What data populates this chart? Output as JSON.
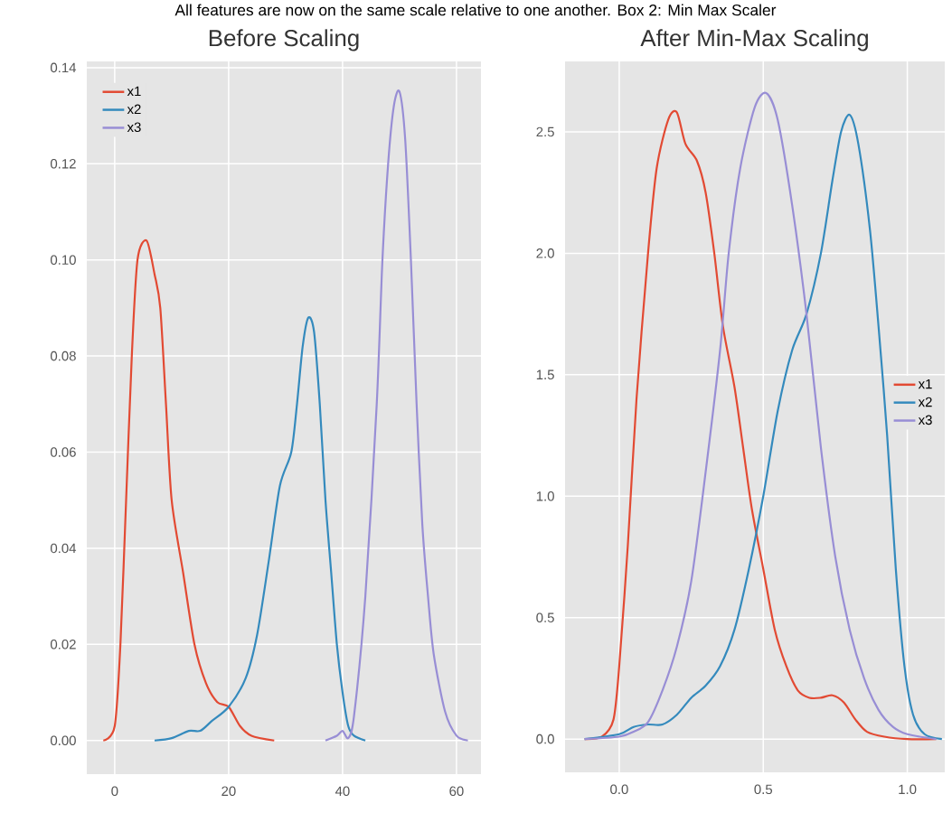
{
  "chart_data": [
    {
      "type": "line",
      "title": "Before Scaling",
      "annotations": [
        "All features are now on the same scale relative to one another. Box 2: Min Max Scaler"
      ],
      "xlim": [
        -4.9,
        64.3
      ],
      "ylim": [
        -0.007,
        0.1413
      ],
      "xticks": [
        0,
        20,
        40,
        60
      ],
      "yticks": [
        {
          "value": 0,
          "label": "0.00"
        },
        {
          "value": 0.02,
          "label": "0.02"
        },
        {
          "value": 0.04,
          "label": "0.04"
        },
        {
          "value": 0.06,
          "label": "0.06"
        },
        {
          "value": 0.08,
          "label": "0.08"
        },
        {
          "value": 0.1,
          "label": "0.10"
        },
        {
          "value": 0.12,
          "label": "0.12"
        },
        {
          "value": 0.14,
          "label": "0.14"
        }
      ],
      "grid": true,
      "legend": "top left",
      "series": [
        {
          "name": "x1",
          "color": "#e24a33",
          "x": [
            -2,
            0,
            1,
            2,
            3,
            4,
            5.6,
            7,
            8,
            9,
            10,
            12,
            14,
            16,
            18,
            20,
            22,
            24,
            28
          ],
          "values": [
            0,
            0.003,
            0.02,
            0.05,
            0.08,
            0.1,
            0.104,
            0.097,
            0.09,
            0.07,
            0.05,
            0.035,
            0.02,
            0.012,
            0.008,
            0.007,
            0.003,
            0.001,
            0
          ]
        },
        {
          "name": "x2",
          "color": "#348abd",
          "x": [
            7,
            10,
            13,
            15,
            17,
            20,
            23,
            25,
            27,
            29,
            31,
            32,
            33,
            34,
            35,
            36,
            37,
            38,
            39,
            40,
            41,
            42,
            44
          ],
          "values": [
            0,
            0.0005,
            0.002,
            0.002,
            0.004,
            0.007,
            0.013,
            0.022,
            0.037,
            0.053,
            0.06,
            0.07,
            0.082,
            0.088,
            0.085,
            0.07,
            0.05,
            0.035,
            0.02,
            0.01,
            0.003,
            0.001,
            0
          ]
        },
        {
          "name": "x3",
          "color": "#988ed5",
          "x": [
            37,
            39,
            40,
            41,
            42,
            44,
            46,
            47,
            48,
            49,
            50,
            51,
            52,
            53,
            54,
            55,
            56,
            58,
            60,
            62
          ],
          "values": [
            0,
            0.001,
            0.002,
            0.0005,
            0.005,
            0.03,
            0.07,
            0.1,
            0.12,
            0.132,
            0.135,
            0.125,
            0.1,
            0.07,
            0.045,
            0.03,
            0.018,
            0.006,
            0.001,
            0
          ]
        }
      ]
    },
    {
      "type": "line",
      "title": "After Min-Max Scaling",
      "xlim": [
        -0.188,
        1.13
      ],
      "ylim": [
        -0.137,
        2.79
      ],
      "xticks": [
        {
          "value": 0,
          "label": "0.0"
        },
        {
          "value": 0.5,
          "label": "0.5"
        },
        {
          "value": 1,
          "label": "1.0"
        }
      ],
      "yticks": [
        {
          "value": 0,
          "label": "0.0"
        },
        {
          "value": 0.5,
          "label": "0.5"
        },
        {
          "value": 1,
          "label": "1.0"
        },
        {
          "value": 1.5,
          "label": "1.5"
        },
        {
          "value": 2,
          "label": "2.0"
        },
        {
          "value": 2.5,
          "label": "2.5"
        }
      ],
      "grid": true,
      "legend": "right",
      "series": [
        {
          "name": "x1",
          "color": "#e24a33",
          "x": [
            -0.12,
            -0.06,
            -0.02,
            0,
            0.03,
            0.06,
            0.1,
            0.13,
            0.17,
            0.2,
            0.23,
            0.27,
            0.3,
            0.33,
            0.36,
            0.4,
            0.43,
            0.46,
            0.5,
            0.54,
            0.58,
            0.62,
            0.66,
            0.7,
            0.74,
            0.78,
            0.82,
            0.86,
            0.92,
            1.0,
            1.1
          ],
          "values": [
            0,
            0.01,
            0.08,
            0.3,
            0.8,
            1.4,
            2.0,
            2.35,
            2.55,
            2.58,
            2.45,
            2.38,
            2.25,
            2.0,
            1.7,
            1.45,
            1.2,
            0.95,
            0.7,
            0.45,
            0.3,
            0.2,
            0.17,
            0.17,
            0.18,
            0.15,
            0.08,
            0.03,
            0.01,
            0,
            0
          ]
        },
        {
          "name": "x2",
          "color": "#348abd",
          "x": [
            -0.12,
            0,
            0.05,
            0.1,
            0.15,
            0.2,
            0.25,
            0.3,
            0.35,
            0.4,
            0.45,
            0.5,
            0.55,
            0.6,
            0.65,
            0.7,
            0.74,
            0.77,
            0.8,
            0.83,
            0.87,
            0.9,
            0.93,
            0.96,
            0.99,
            1.02,
            1.06,
            1.12
          ],
          "values": [
            0,
            0.02,
            0.05,
            0.06,
            0.06,
            0.1,
            0.17,
            0.22,
            0.3,
            0.45,
            0.7,
            1.0,
            1.35,
            1.6,
            1.75,
            2.0,
            2.3,
            2.5,
            2.57,
            2.45,
            2.1,
            1.7,
            1.25,
            0.7,
            0.3,
            0.1,
            0.02,
            0
          ]
        },
        {
          "name": "x3",
          "color": "#988ed5",
          "x": [
            -0.12,
            0,
            0.05,
            0.1,
            0.15,
            0.2,
            0.25,
            0.3,
            0.35,
            0.38,
            0.42,
            0.47,
            0.51,
            0.55,
            0.6,
            0.65,
            0.7,
            0.75,
            0.8,
            0.85,
            0.9,
            0.95,
            1.0,
            1.1
          ],
          "values": [
            0,
            0.01,
            0.03,
            0.07,
            0.2,
            0.38,
            0.65,
            1.1,
            1.6,
            2.0,
            2.35,
            2.6,
            2.66,
            2.55,
            2.2,
            1.75,
            1.2,
            0.75,
            0.45,
            0.25,
            0.12,
            0.05,
            0.02,
            0
          ]
        }
      ]
    }
  ]
}
